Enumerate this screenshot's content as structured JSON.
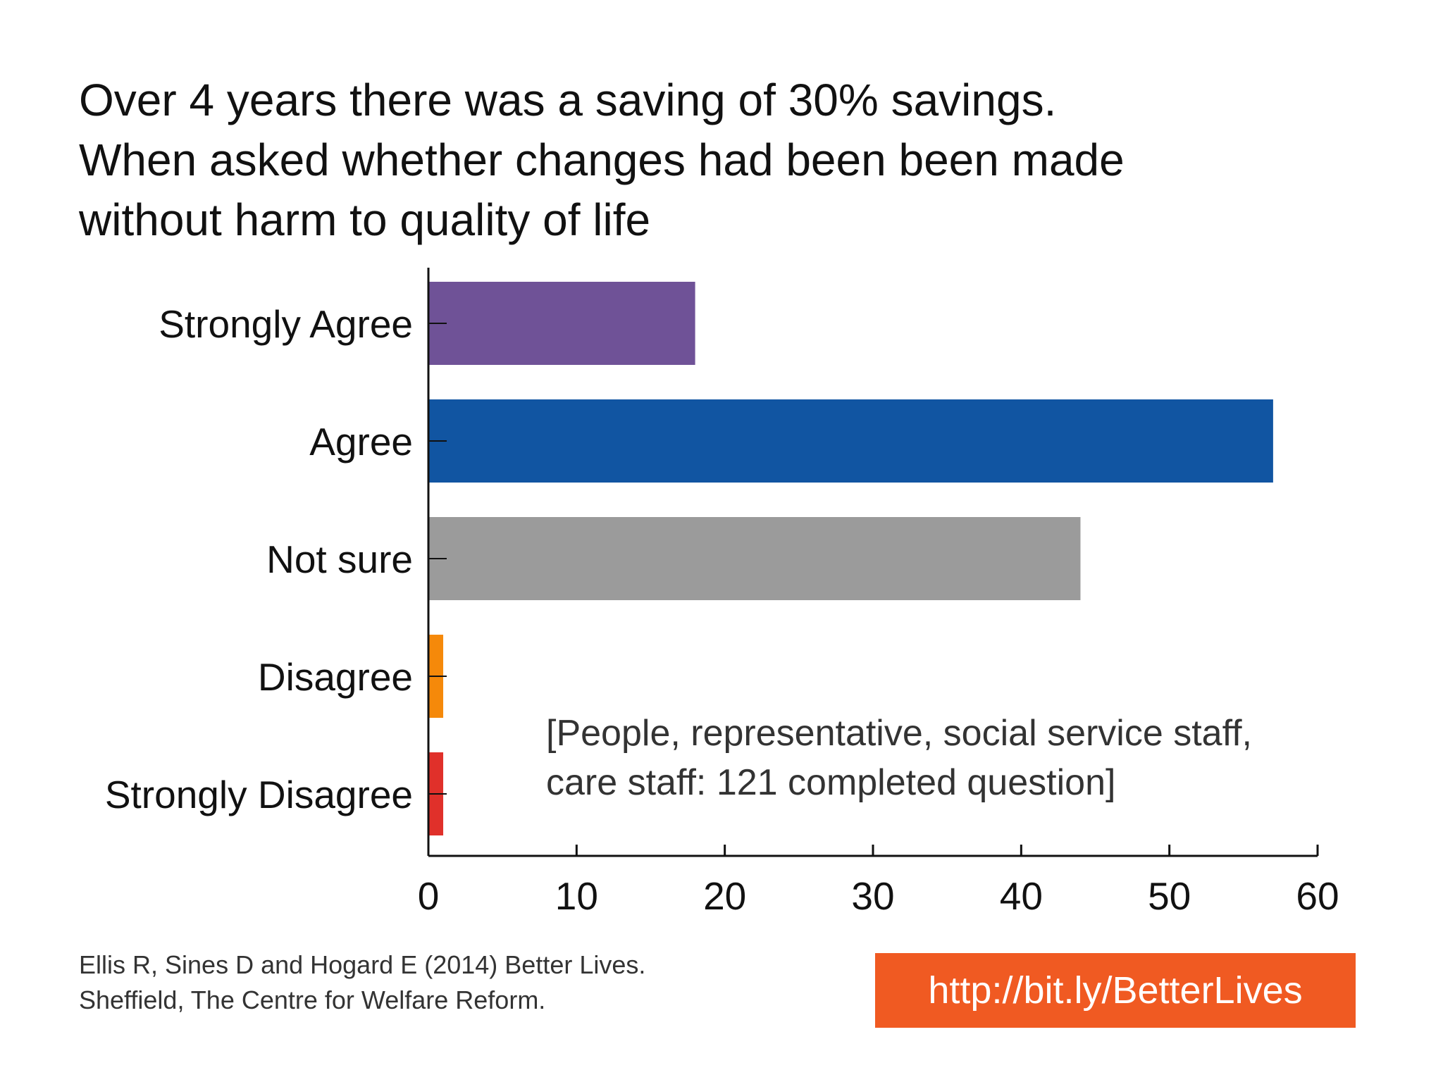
{
  "title_lines": [
    "Over 4 years there was a saving of 30% savings.",
    "When asked whether changes had been been made",
    "without harm to quality of life"
  ],
  "chart_data": {
    "type": "bar",
    "orientation": "horizontal",
    "title": "Over 4 years there was a saving of 30% savings. When asked whether changes had been been made without harm to quality of life",
    "categories": [
      "Strongly Agree",
      "Agree",
      "Not sure",
      "Disagree",
      "Strongly Disagree"
    ],
    "values": [
      18,
      57,
      44,
      1,
      1
    ],
    "colors": [
      "#6f5297",
      "#1155a2",
      "#9b9b9b",
      "#f5890a",
      "#e0302a"
    ],
    "xlabel": "",
    "ylabel": "",
    "xlim": [
      0,
      60
    ],
    "xticks": [
      0,
      10,
      20,
      30,
      40,
      50,
      60
    ],
    "grid": false,
    "annotation_lines": [
      "[People, representative, social service staff,",
      "care staff: 121 completed question]"
    ]
  },
  "citation_lines": [
    "Ellis R, Sines D and Hogard E (2014) Better Lives.",
    "Sheffield, The Centre for Welfare Reform."
  ],
  "link": {
    "text": "http://bit.ly/BetterLives",
    "background": "#f05a22"
  }
}
